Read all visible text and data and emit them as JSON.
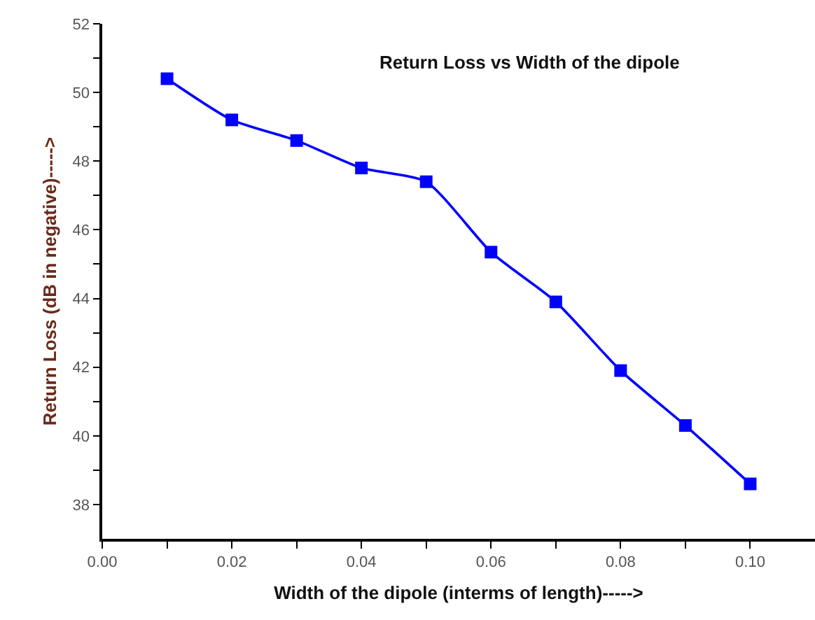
{
  "chart_data": {
    "type": "line",
    "title": "Return Loss vs Width of the dipole",
    "xlabel": "Width of the dipole (interms of length)----->",
    "ylabel": "Return Loss (dB in negative)----->",
    "x": [
      0.01,
      0.02,
      0.03,
      0.04,
      0.05,
      0.06,
      0.07,
      0.08,
      0.09,
      0.1
    ],
    "series": [
      {
        "color": "#0000ff",
        "values": [
          50.4,
          49.2,
          48.6,
          47.8,
          47.4,
          45.35,
          43.9,
          41.9,
          40.3,
          38.6
        ]
      }
    ],
    "xlim": [
      0,
      0.11
    ],
    "ylim": [
      37,
      52
    ],
    "xticks": [
      {
        "value": 0,
        "label": "0.00"
      },
      {
        "value": 0.01,
        "label": null
      },
      {
        "value": 0.02,
        "label": "0.02"
      },
      {
        "value": 0.03,
        "label": null
      },
      {
        "value": 0.04,
        "label": "0.04"
      },
      {
        "value": 0.05,
        "label": null
      },
      {
        "value": 0.06,
        "label": "0.06"
      },
      {
        "value": 0.07,
        "label": null
      },
      {
        "value": 0.08,
        "label": "0.08"
      },
      {
        "value": 0.09,
        "label": null
      },
      {
        "value": 0.1,
        "label": "0.10"
      }
    ],
    "yticks": [
      38,
      {
        "value": 39,
        "label": null
      },
      40,
      {
        "value": 41,
        "label": null
      },
      42,
      {
        "value": 43,
        "label": null
      },
      44,
      {
        "value": 45,
        "label": null
      },
      46,
      {
        "value": 47,
        "label": null
      },
      48,
      {
        "value": 49,
        "label": null
      },
      50,
      {
        "value": 51,
        "label": null
      },
      52
    ],
    "marker": "square",
    "line_style": "solid"
  }
}
